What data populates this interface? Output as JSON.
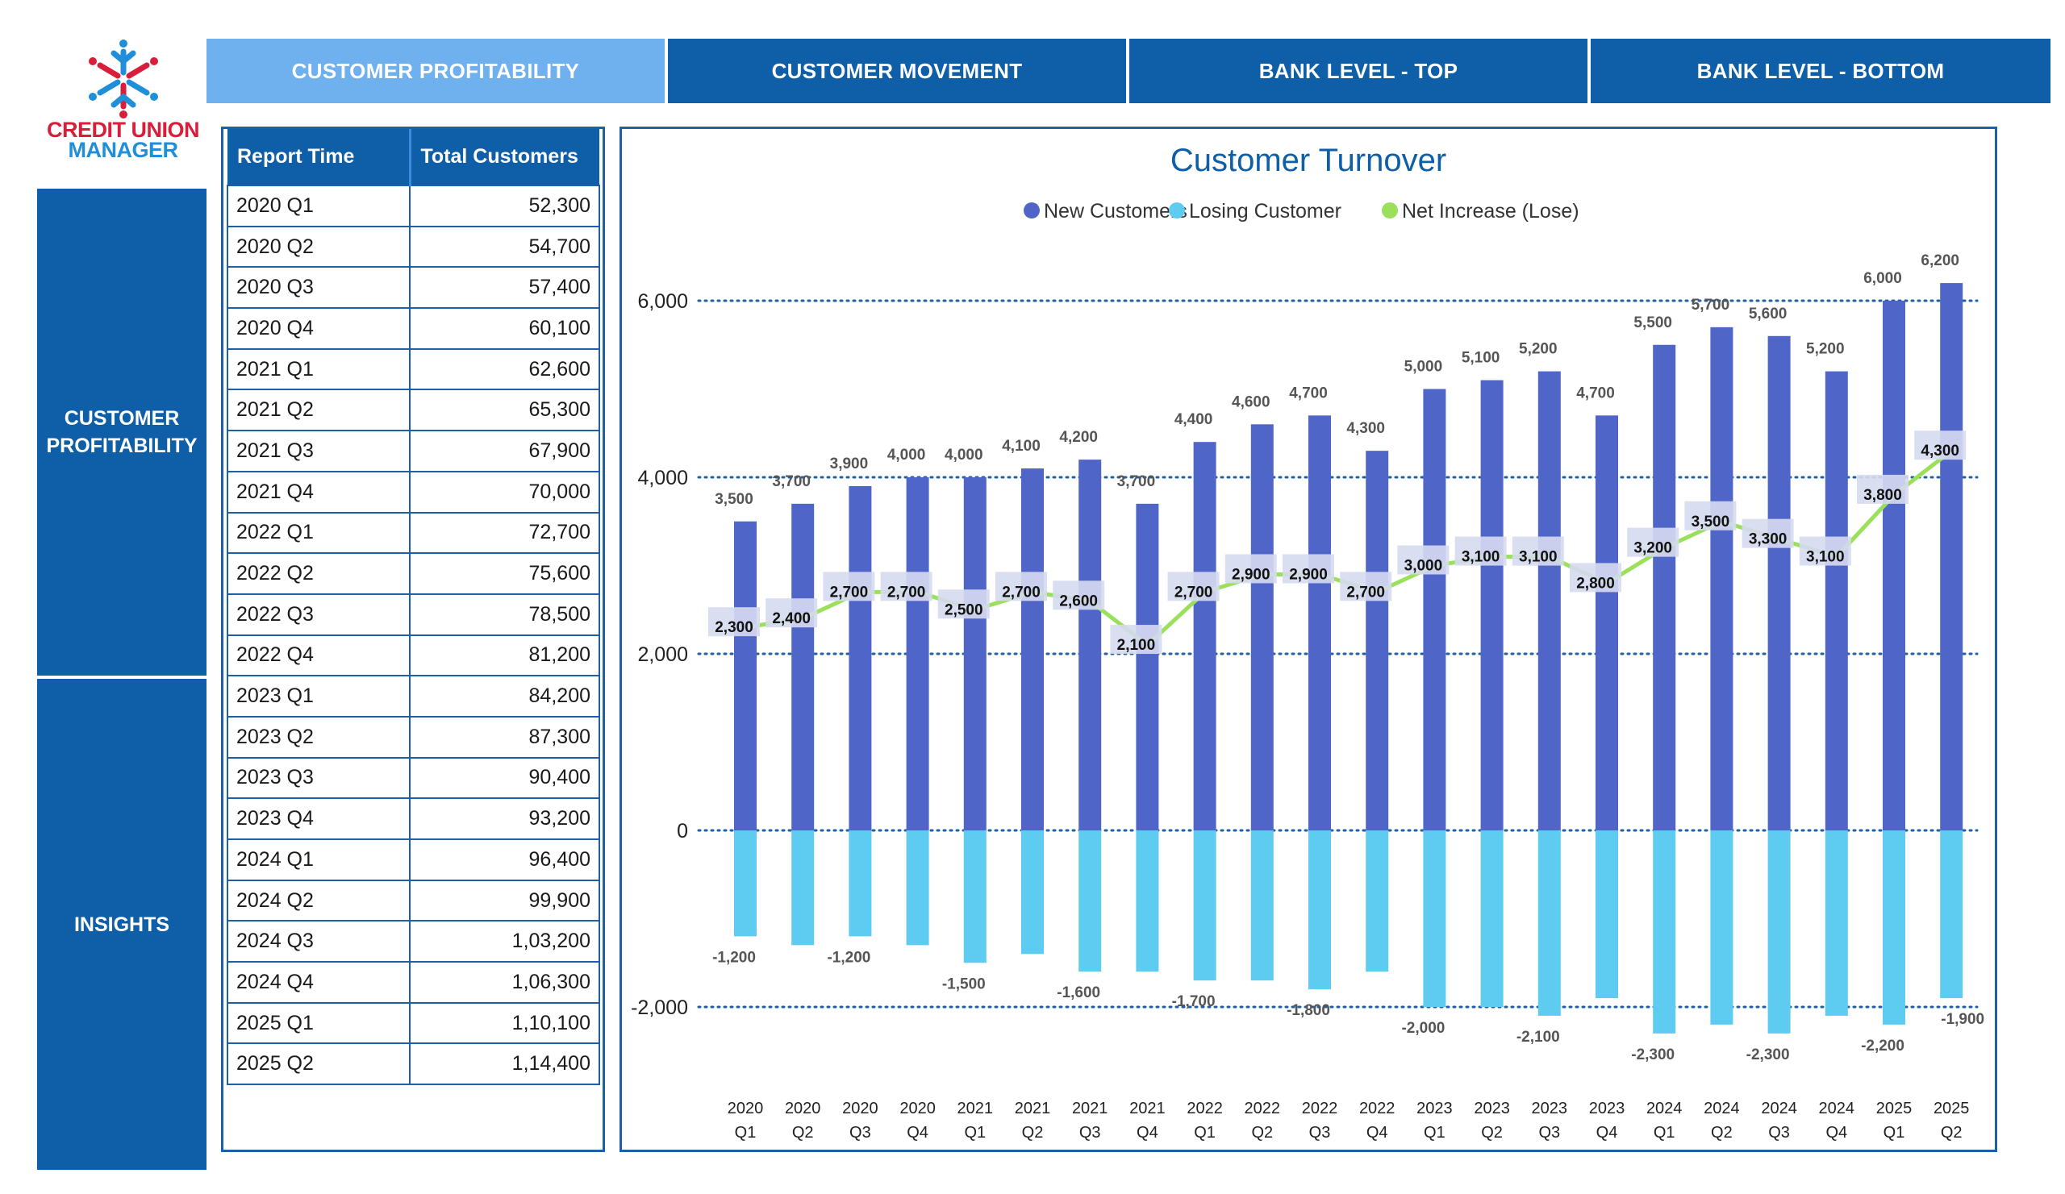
{
  "logo": {
    "line1": "CREDIT UNION",
    "line2": "MANAGER"
  },
  "tabs": [
    {
      "label": "CUSTOMER PROFITABILITY",
      "active": true
    },
    {
      "label": "CUSTOMER MOVEMENT",
      "active": false
    },
    {
      "label": "BANK LEVEL - TOP",
      "active": false
    },
    {
      "label": "BANK LEVEL - BOTTOM",
      "active": false
    }
  ],
  "sidenav": {
    "item1": "CUSTOMER PROFITABILITY",
    "item2": "INSIGHTS"
  },
  "table": {
    "headers": [
      "Report Time",
      "Total Customers"
    ],
    "rows": [
      [
        "2020 Q1",
        "52,300"
      ],
      [
        "2020 Q2",
        "54,700"
      ],
      [
        "2020 Q3",
        "57,400"
      ],
      [
        "2020 Q4",
        "60,100"
      ],
      [
        "2021 Q1",
        "62,600"
      ],
      [
        "2021 Q2",
        "65,300"
      ],
      [
        "2021 Q3",
        "67,900"
      ],
      [
        "2021 Q4",
        "70,000"
      ],
      [
        "2022 Q1",
        "72,700"
      ],
      [
        "2022 Q2",
        "75,600"
      ],
      [
        "2022 Q3",
        "78,500"
      ],
      [
        "2022 Q4",
        "81,200"
      ],
      [
        "2023 Q1",
        "84,200"
      ],
      [
        "2023 Q2",
        "87,300"
      ],
      [
        "2023 Q3",
        "90,400"
      ],
      [
        "2023 Q4",
        "93,200"
      ],
      [
        "2024 Q1",
        "96,400"
      ],
      [
        "2024 Q2",
        "99,900"
      ],
      [
        "2024 Q3",
        "1,03,200"
      ],
      [
        "2024 Q4",
        "1,06,300"
      ],
      [
        "2025 Q1",
        "1,10,100"
      ],
      [
        "2025 Q2",
        "1,14,400"
      ]
    ]
  },
  "colors": {
    "new": "#4f66c8",
    "losing": "#5ecbf0",
    "net": "#9be05a",
    "axis_blue": "#1f5fa6",
    "title": "#0e5ea8"
  },
  "chart_data": {
    "type": "bar",
    "title": "Customer Turnover",
    "categories": [
      [
        "2020",
        "Q1"
      ],
      [
        "2020",
        "Q2"
      ],
      [
        "2020",
        "Q3"
      ],
      [
        "2020",
        "Q4"
      ],
      [
        "2021",
        "Q1"
      ],
      [
        "2021",
        "Q2"
      ],
      [
        "2021",
        "Q3"
      ],
      [
        "2021",
        "Q4"
      ],
      [
        "2022",
        "Q1"
      ],
      [
        "2022",
        "Q2"
      ],
      [
        "2022",
        "Q3"
      ],
      [
        "2022",
        "Q4"
      ],
      [
        "2023",
        "Q1"
      ],
      [
        "2023",
        "Q2"
      ],
      [
        "2023",
        "Q3"
      ],
      [
        "2023",
        "Q4"
      ],
      [
        "2024",
        "Q1"
      ],
      [
        "2024",
        "Q2"
      ],
      [
        "2024",
        "Q3"
      ],
      [
        "2024",
        "Q4"
      ],
      [
        "2025",
        "Q1"
      ],
      [
        "2025",
        "Q2"
      ]
    ],
    "series": [
      {
        "name": "New Customers",
        "type": "bar",
        "values": [
          3500,
          3700,
          3900,
          4000,
          4000,
          4100,
          4200,
          3700,
          4400,
          4600,
          4700,
          4300,
          5000,
          5100,
          5200,
          4700,
          5500,
          5700,
          5600,
          5200,
          6000,
          6200
        ]
      },
      {
        "name": "Losing Customer",
        "type": "bar",
        "values": [
          -1200,
          -1300,
          -1200,
          -1300,
          -1500,
          -1400,
          -1600,
          -1600,
          -1700,
          -1700,
          -1800,
          -1600,
          -2000,
          -2000,
          -2100,
          -1900,
          -2300,
          -2200,
          -2300,
          -2100,
          -2200,
          -1900
        ]
      },
      {
        "name": "Net Increase (Lose)",
        "type": "line",
        "values": [
          2300,
          2400,
          2700,
          2700,
          2500,
          2700,
          2600,
          2100,
          2700,
          2900,
          2900,
          2700,
          3000,
          3100,
          3100,
          2800,
          3200,
          3500,
          3300,
          3100,
          3800,
          4300
        ]
      }
    ],
    "losing_labels": [
      "-1,200",
      "",
      "-1,200",
      "",
      "-1,500",
      "",
      "-1,600",
      "",
      "-1,700",
      "",
      "-1,800",
      "",
      "-2,000",
      "",
      "-2,100",
      "",
      "-2,300",
      "",
      "-2,300",
      "",
      "-2,200",
      "-1,900"
    ],
    "y_ticks": [
      -2000,
      0,
      2000,
      4000,
      6000
    ],
    "y_tick_labels": [
      "-2,000",
      "0",
      "2,000",
      "4,000",
      "6,000"
    ],
    "ylim": [
      -2800,
      7000
    ],
    "legend": [
      "New Customers",
      "Losing Customer",
      "Net Increase (Lose)"
    ],
    "legend_position": "top-center",
    "grid": "dotted"
  }
}
